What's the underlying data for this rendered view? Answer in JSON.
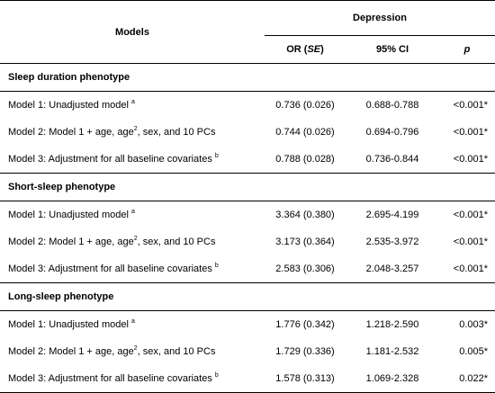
{
  "header": {
    "models": "Models",
    "outcome": "Depression",
    "or_label": "OR (",
    "or_se": "SE",
    "or_close": ")",
    "ci": "95% CI",
    "p": "p"
  },
  "sections": [
    {
      "title": "Sleep duration phenotype",
      "rows": [
        {
          "label": "Model 1: Unadjusted model",
          "sup": "a",
          "or": "0.736 (0.026)",
          "ci": "0.688-0.788",
          "p": "<0.001*"
        },
        {
          "label": "Model 2: Model 1 + age, age",
          "sup": "2",
          "label_rest": ", sex, and 10 PCs",
          "or": "0.744 (0.026)",
          "ci": "0.694-0.796",
          "p": "<0.001*"
        },
        {
          "label": "Model 3: Adjustment for all baseline covariates",
          "sup": "b",
          "or": "0.788 (0.028)",
          "ci": "0.736-0.844",
          "p": "<0.001*"
        }
      ]
    },
    {
      "title": "Short-sleep phenotype",
      "rows": [
        {
          "label": "Model 1: Unadjusted model",
          "sup": "a",
          "or": "3.364 (0.380)",
          "ci": "2.695-4.199",
          "p": "<0.001*"
        },
        {
          "label": "Model 2: Model 1 + age, age",
          "sup": "2",
          "label_rest": ", sex, and 10 PCs",
          "or": "3.173 (0.364)",
          "ci": "2.535-3.972",
          "p": "<0.001*"
        },
        {
          "label": "Model 3: Adjustment for all baseline covariates",
          "sup": "b",
          "or": "2.583 (0.306)",
          "ci": "2.048-3.257",
          "p": "<0.001*"
        }
      ]
    },
    {
      "title": "Long-sleep phenotype",
      "rows": [
        {
          "label": "Model 1: Unadjusted model",
          "sup": "a",
          "or": "1.776 (0.342)",
          "ci": "1.218-2.590",
          "p": "0.003*"
        },
        {
          "label": "Model 2: Model 1 + age, age",
          "sup": "2",
          "label_rest": ", sex, and 10 PCs",
          "or": "1.729 (0.336)",
          "ci": "1.181-2.532",
          "p": "0.005*"
        },
        {
          "label": "Model 3: Adjustment for all baseline covariates",
          "sup": "b",
          "or": "1.578 (0.313)",
          "ci": "1.069-2.328",
          "p": "0.022*"
        }
      ]
    }
  ]
}
